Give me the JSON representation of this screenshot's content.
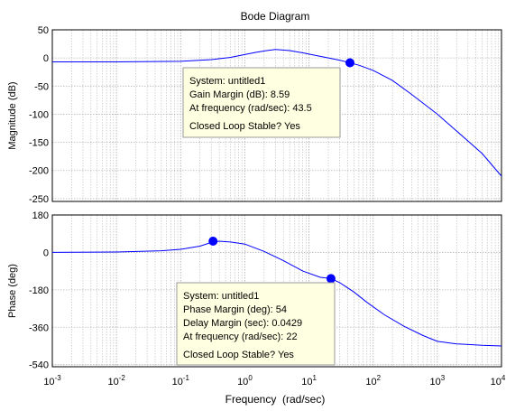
{
  "chart_data": {
    "type": "line",
    "title": "Bode Diagram",
    "xlabel": "Frequency  (rad/sec)",
    "x_scale": "log",
    "xlim": [
      0.001,
      10000
    ],
    "x_ticks": [
      {
        "value": 0.001,
        "base": "10",
        "exp": "-3"
      },
      {
        "value": 0.01,
        "base": "10",
        "exp": "-2"
      },
      {
        "value": 0.1,
        "base": "10",
        "exp": "-1"
      },
      {
        "value": 1,
        "base": "10",
        "exp": "0"
      },
      {
        "value": 10,
        "base": "10",
        "exp": "1"
      },
      {
        "value": 100,
        "base": "10",
        "exp": "2"
      },
      {
        "value": 1000,
        "base": "10",
        "exp": "3"
      },
      {
        "value": 10000,
        "base": "10",
        "exp": "4"
      }
    ],
    "grid": true,
    "line_color": "#0000ff",
    "marker_color": "#0000ff",
    "panels": [
      {
        "id": "magnitude",
        "ylabel": "Magnitude (dB)",
        "ylim": [
          -255,
          50
        ],
        "yticks": [
          50,
          0,
          -50,
          -100,
          -150,
          -200,
          -250
        ],
        "ytick_labels": [
          "50",
          "0",
          "-50",
          "-100",
          "-150",
          "-200",
          "-250"
        ],
        "series": {
          "x": [
            0.001,
            0.01,
            0.1,
            0.3,
            0.6,
            1,
            1.5,
            2.2,
            3,
            5,
            8,
            12,
            20,
            30,
            43.5,
            60,
            100,
            200,
            400,
            1000,
            2000,
            5000,
            10000
          ],
          "y": [
            -7,
            -7,
            -6,
            -3,
            1,
            6,
            10,
            13,
            15,
            13,
            9,
            5,
            0,
            -4,
            -8.6,
            -13,
            -22,
            -40,
            -65,
            -100,
            -130,
            -170,
            -210
          ]
        },
        "marker": {
          "x": 43.5,
          "y": -8.6
        },
        "annotation": {
          "lines": [
            "System: untitled1",
            "Gain Margin (dB): 8.59",
            "At frequency (rad/sec): 43.5",
            "Closed Loop Stable? Yes"
          ]
        }
      },
      {
        "id": "phase",
        "ylabel": "Phase (deg)",
        "ylim": [
          -550,
          180
        ],
        "yticks": [
          180,
          0,
          -180,
          -360,
          -540
        ],
        "ytick_labels": [
          "180",
          "0",
          "-180",
          "-360",
          "-540"
        ],
        "series": {
          "x": [
            0.001,
            0.01,
            0.05,
            0.1,
            0.2,
            0.3,
            0.4,
            0.6,
            1,
            2,
            4,
            8,
            15,
            22,
            30,
            50,
            80,
            150,
            300,
            600,
            1000,
            2000,
            5000,
            10000
          ],
          "y": [
            0,
            2,
            8,
            15,
            30,
            48,
            54,
            50,
            40,
            5,
            -40,
            -90,
            -120,
            -126,
            -145,
            -190,
            -240,
            -300,
            -355,
            -400,
            -428,
            -440,
            -447,
            -450
          ]
        },
        "marker": {
          "x": 22,
          "y": -126
        },
        "marker2": {
          "x": 0.32,
          "y": 54
        },
        "annotation": {
          "lines": [
            "System: untitled1",
            "Phase Margin (deg): 54",
            "Delay Margin (sec): 0.0429",
            "At frequency (rad/sec): 22",
            "Closed Loop Stable? Yes"
          ]
        }
      }
    ]
  }
}
